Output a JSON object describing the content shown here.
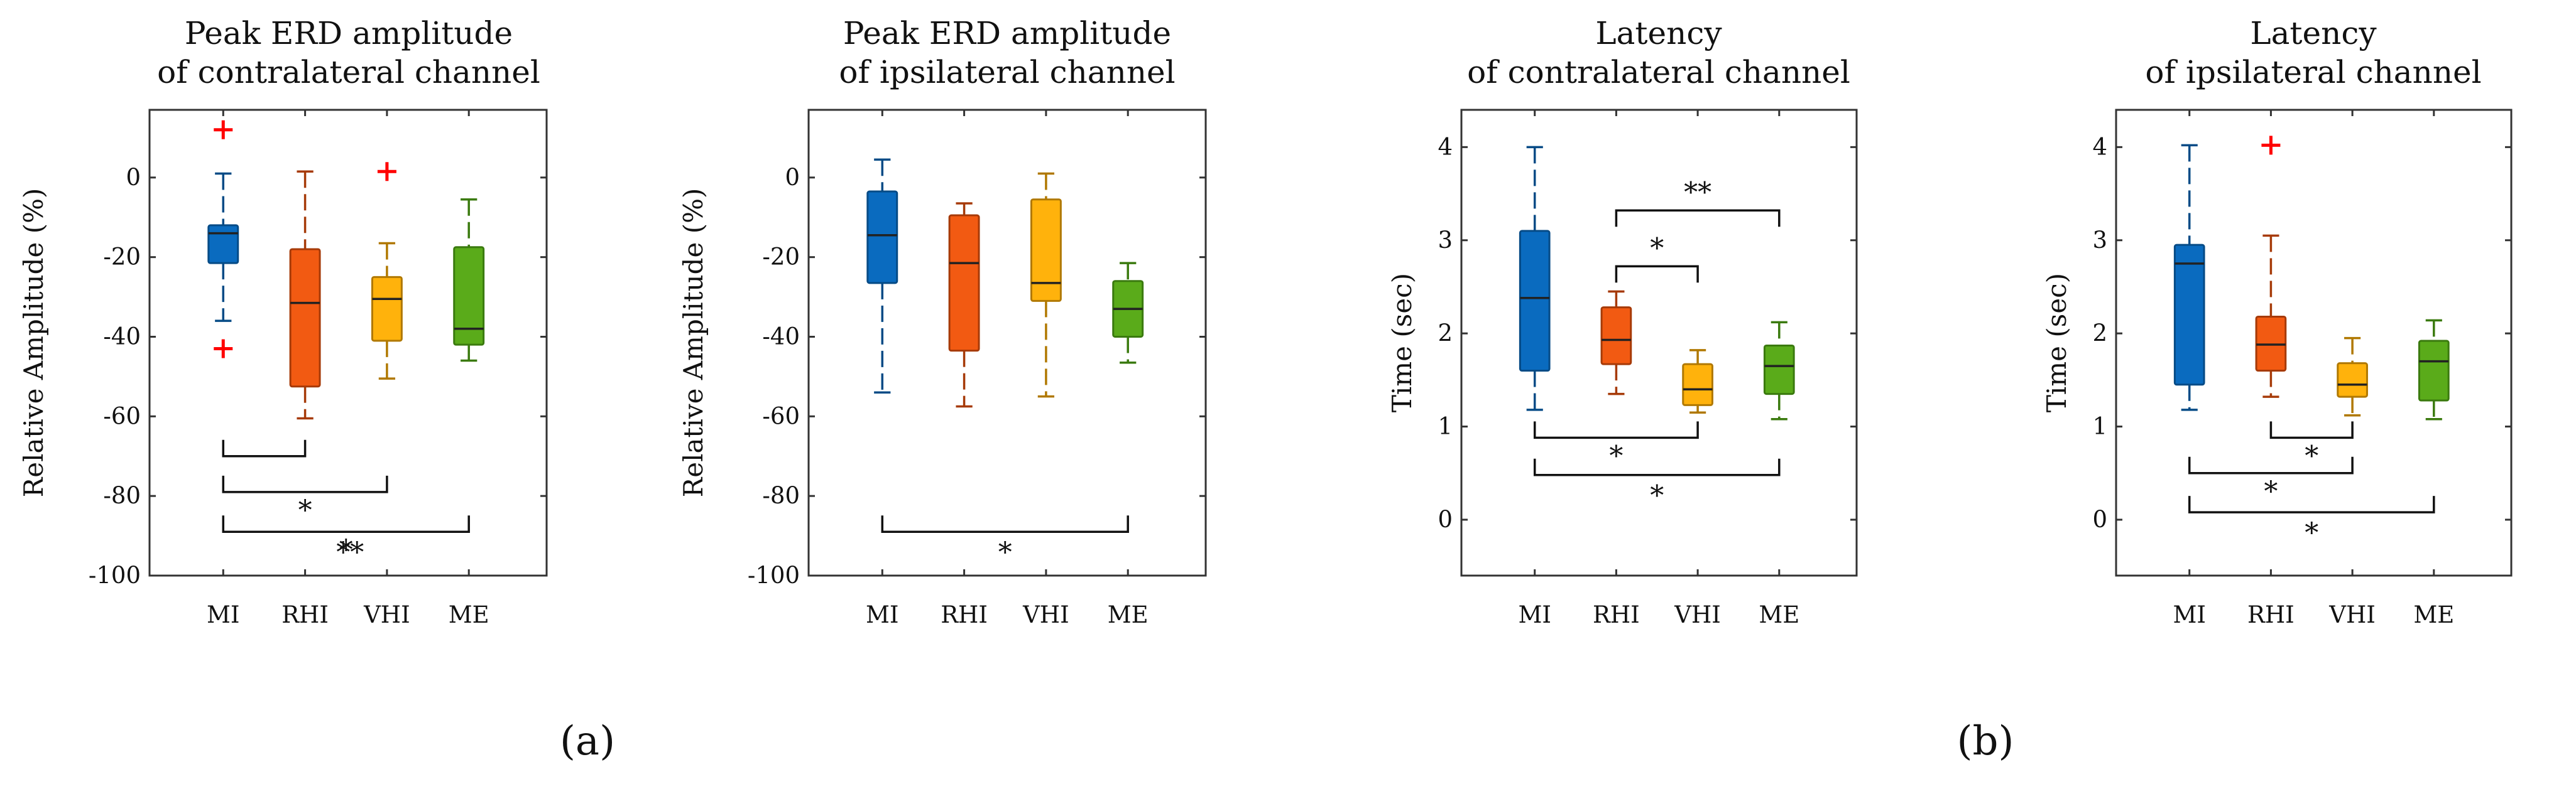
{
  "chart_data": [
    {
      "type": "boxplot",
      "title": [
        "Peak ERD amplitude",
        "of contralateral channel"
      ],
      "ylabel": "Relative Amplitude (%)",
      "ylim": [
        -100,
        17
      ],
      "yticks": [
        0,
        -20,
        -40,
        -60,
        -80,
        -100
      ],
      "categories": [
        "MI",
        "RHI",
        "VHI",
        "ME"
      ],
      "boxes": [
        {
          "q1": -21.5,
          "median": -14,
          "q3": -12,
          "whisker_low": -36,
          "whisker_high": 1,
          "outliers": [
            12,
            -43
          ]
        },
        {
          "q1": -52.5,
          "median": -31.5,
          "q3": -18,
          "whisker_low": -60.5,
          "whisker_high": 1.5,
          "outliers": []
        },
        {
          "q1": -41,
          "median": -30.5,
          "q3": -25,
          "whisker_low": -50.5,
          "whisker_high": -16.5,
          "outliers": [
            1.5
          ]
        },
        {
          "q1": -42,
          "median": -38,
          "q3": -17.5,
          "whisker_low": -46,
          "whisker_high": -5.5,
          "outliers": []
        }
      ],
      "significance": [
        {
          "from": 0,
          "to": 1,
          "y": -70,
          "label": ""
        },
        {
          "from": 0,
          "to": 2,
          "y": -79,
          "label": "*"
        },
        {
          "from": 0,
          "to": 3,
          "y": -89,
          "label": "*"
        },
        {
          "from": 0,
          "to": 3,
          "y": -89,
          "label": "**",
          "label_x": 1.55,
          "label_below": true
        }
      ]
    },
    {
      "type": "boxplot",
      "title": [
        "Peak ERD amplitude",
        "of ipsilateral channel"
      ],
      "ylabel": "Relative Amplitude (%)",
      "ylim": [
        -100,
        17
      ],
      "yticks": [
        0,
        -20,
        -40,
        -60,
        -80,
        -100
      ],
      "categories": [
        "MI",
        "RHI",
        "VHI",
        "ME"
      ],
      "boxes": [
        {
          "q1": -26.5,
          "median": -14.5,
          "q3": -3.5,
          "whisker_low": -54,
          "whisker_high": 4.5,
          "outliers": []
        },
        {
          "q1": -43.5,
          "median": -21.5,
          "q3": -9.5,
          "whisker_low": -57.5,
          "whisker_high": -6.5,
          "outliers": []
        },
        {
          "q1": -31,
          "median": -26.5,
          "q3": -5.5,
          "whisker_low": -55,
          "whisker_high": 1,
          "outliers": []
        },
        {
          "q1": -40,
          "median": -33,
          "q3": -26,
          "whisker_low": -46.5,
          "whisker_high": -21.5,
          "outliers": []
        }
      ],
      "significance": [
        {
          "from": 0,
          "to": 3,
          "y": -89,
          "label": "*",
          "label_below": true
        }
      ]
    },
    {
      "type": "boxplot",
      "title": [
        "Latency",
        "of contralateral channel"
      ],
      "ylabel": "Time (sec)",
      "ylim": [
        -0.6,
        4.4
      ],
      "yticks": [
        0,
        1,
        2,
        3,
        4
      ],
      "categories": [
        "MI",
        "RHI",
        "VHI",
        "ME"
      ],
      "boxes": [
        {
          "q1": 1.6,
          "median": 2.38,
          "q3": 3.1,
          "whisker_low": 1.18,
          "whisker_high": 4.0,
          "outliers": []
        },
        {
          "q1": 1.67,
          "median": 1.93,
          "q3": 2.28,
          "whisker_low": 1.35,
          "whisker_high": 2.45,
          "outliers": []
        },
        {
          "q1": 1.23,
          "median": 1.4,
          "q3": 1.67,
          "whisker_low": 1.15,
          "whisker_high": 1.82,
          "outliers": []
        },
        {
          "q1": 1.35,
          "median": 1.65,
          "q3": 1.87,
          "whisker_low": 1.08,
          "whisker_high": 2.12,
          "outliers": []
        }
      ],
      "significance": [
        {
          "from": 1,
          "to": 3,
          "y": 3.32,
          "label": "**",
          "down": true
        },
        {
          "from": 1,
          "to": 2,
          "y": 2.72,
          "label": "*",
          "down": true
        },
        {
          "from": 0,
          "to": 2,
          "y": 0.88,
          "label": "*"
        },
        {
          "from": 0,
          "to": 3,
          "y": 0.48,
          "label": "*",
          "label_below": true
        }
      ]
    },
    {
      "type": "boxplot",
      "title": [
        "Latency",
        "of ipsilateral channel"
      ],
      "ylabel": "Time (sec)",
      "ylim": [
        -0.6,
        4.4
      ],
      "yticks": [
        0,
        1,
        2,
        3,
        4
      ],
      "categories": [
        "MI",
        "RHI",
        "VHI",
        "ME"
      ],
      "boxes": [
        {
          "q1": 1.45,
          "median": 2.75,
          "q3": 2.95,
          "whisker_low": 1.18,
          "whisker_high": 4.02,
          "outliers": []
        },
        {
          "q1": 1.6,
          "median": 1.88,
          "q3": 2.18,
          "whisker_low": 1.32,
          "whisker_high": 3.05,
          "outliers": [
            4.02
          ]
        },
        {
          "q1": 1.32,
          "median": 1.45,
          "q3": 1.68,
          "whisker_low": 1.12,
          "whisker_high": 1.95,
          "outliers": []
        },
        {
          "q1": 1.28,
          "median": 1.7,
          "q3": 1.92,
          "whisker_low": 1.08,
          "whisker_high": 2.14,
          "outliers": []
        }
      ],
      "significance": [
        {
          "from": 1,
          "to": 2,
          "y": 0.88,
          "label": "*"
        },
        {
          "from": 0,
          "to": 2,
          "y": 0.5,
          "label": "*"
        },
        {
          "from": 0,
          "to": 3,
          "y": 0.08,
          "label": "*",
          "label_below": true
        }
      ]
    }
  ],
  "box_colors": [
    "#0a6bbf",
    "#f25a12",
    "#ffb20c",
    "#5aab1a"
  ],
  "box_edge_colors": [
    "#064b86",
    "#a63a08",
    "#b07800",
    "#3a7a0e"
  ],
  "outlier_color": "#ff0000",
  "outlier_marker": "+",
  "panel_labels": [
    "(a)",
    "(b)"
  ]
}
